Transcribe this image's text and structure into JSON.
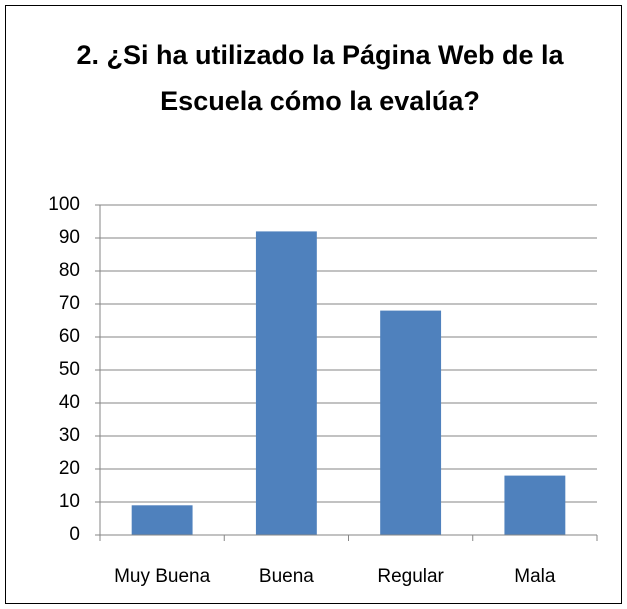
{
  "chart_data": {
    "type": "bar",
    "title": "2. ¿Si ha utilizado la Página Web de la Escuela cómo la evalúa?",
    "categories": [
      "Muy Buena",
      "Buena",
      "Regular",
      "Mala"
    ],
    "values": [
      9,
      92,
      68,
      18
    ],
    "color": "#4f81bd",
    "ylim": [
      0,
      100
    ],
    "yticks": [
      0,
      10,
      20,
      30,
      40,
      50,
      60,
      70,
      80,
      90,
      100
    ],
    "grid": true
  }
}
